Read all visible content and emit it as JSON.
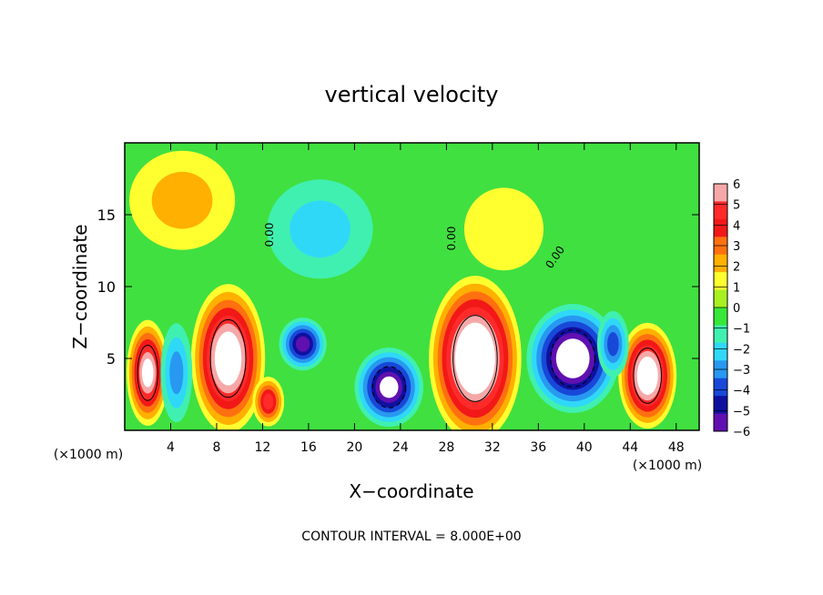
{
  "chart_data": {
    "type": "heatmap",
    "title": "vertical velocity",
    "xlabel": "X−coordinate",
    "ylabel": "Z−coordinate",
    "x_unit_left": "(×1000 m)",
    "x_unit_right": "(×1000 m)",
    "footer": "CONTOUR INTERVAL = 8.000E+00",
    "xlim": [
      0,
      50
    ],
    "ylim": [
      0,
      20
    ],
    "x_ticks": [
      "4",
      "8",
      "12",
      "16",
      "20",
      "24",
      "28",
      "32",
      "36",
      "40",
      "44",
      "48"
    ],
    "y_ticks": [
      "5",
      "10",
      "15"
    ],
    "contour_labels": [
      "0.00",
      "0.00",
      "0.00"
    ],
    "colorbar": {
      "range": [
        -6,
        6
      ],
      "tick_labels": [
        "6",
        "5",
        "4",
        "3",
        "2",
        "1",
        "0",
        "−1",
        "−2",
        "−3",
        "−4",
        "−5",
        "−6"
      ],
      "colors": [
        "#f6a8a8",
        "#ff2a2a",
        "#f21818",
        "#ff7010",
        "#ffb000",
        "#ffff30",
        "#a8f020",
        "#38e838",
        "#40f0b0",
        "#30d8f8",
        "#2898f0",
        "#1848d8",
        "#1010a0",
        "#6010b0"
      ]
    },
    "features": [
      {
        "kind": "updraft",
        "x": 2,
        "z": 4,
        "rx": 1.6,
        "rz": 3.2,
        "peak": 7
      },
      {
        "kind": "updraft",
        "x": 9,
        "z": 5,
        "rx": 2.8,
        "rz": 4.5,
        "peak": 8
      },
      {
        "kind": "updraft",
        "x": 12.5,
        "z": 2,
        "rx": 1.2,
        "rz": 1.5,
        "peak": 5
      },
      {
        "kind": "updraft",
        "x": 30.5,
        "z": 5,
        "rx": 3.5,
        "rz": 5,
        "peak": 9
      },
      {
        "kind": "updraft",
        "x": 45.5,
        "z": 3.8,
        "rx": 2.2,
        "rz": 3.2,
        "peak": 8
      },
      {
        "kind": "downdraft",
        "x": 15.5,
        "z": 6,
        "rx": 1.8,
        "rz": 1.6,
        "peak": -6
      },
      {
        "kind": "downdraft",
        "x": 23,
        "z": 3,
        "rx": 2.6,
        "rz": 2.4,
        "peak": -7
      },
      {
        "kind": "downdraft",
        "x": 39,
        "z": 5,
        "rx": 3.5,
        "rz": 3.3,
        "peak": -8
      },
      {
        "kind": "downdraft",
        "x": 4.5,
        "z": 4,
        "rx": 1.2,
        "rz": 3,
        "peak": -3
      },
      {
        "kind": "downdraft",
        "x": 42.5,
        "z": 6,
        "rx": 1.2,
        "rz": 2,
        "peak": -4
      },
      {
        "kind": "weak",
        "x": 5,
        "z": 16,
        "rx": 4,
        "rz": 3,
        "peak": 2
      },
      {
        "kind": "weak",
        "x": 17,
        "z": 14,
        "rx": 4,
        "rz": 3,
        "peak": -2
      },
      {
        "kind": "weak",
        "x": 33,
        "z": 14,
        "rx": 3,
        "rz": 2.5,
        "peak": 1.5
      }
    ]
  }
}
